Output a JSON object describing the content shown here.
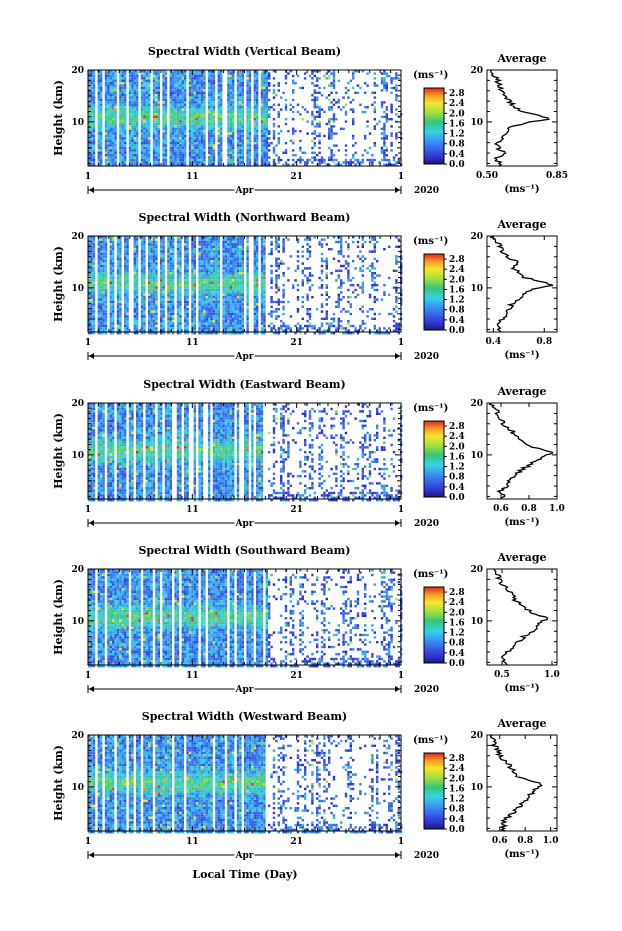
{
  "figure": {
    "xlabel": "Local Time (Day)",
    "month_label": "Apr",
    "year_label": "2020",
    "colorbar_unit": "(ms⁻¹)",
    "average_title": "Average",
    "average_unit": "(ms⁻¹)",
    "ylabel": "Height (km)"
  },
  "chart_data": [
    {
      "type": "heatmap",
      "title": "Spectral Width (Vertical Beam)",
      "ylabel": "Height (km)",
      "xlabel": "",
      "x_ticks": [
        "1",
        "11",
        "21",
        "1"
      ],
      "x_range": [
        1,
        31
      ],
      "y_ticks": [
        "20",
        "10"
      ],
      "y_range": [
        1.5,
        20
      ],
      "colorbar_ticks": [
        "2.8",
        "2.4",
        "2.0",
        "1.6",
        "1.2",
        "0.8",
        "0.4",
        "0.0"
      ],
      "colorbar_range": [
        0.0,
        3.0
      ],
      "data_coverage_until_day": 18.2,
      "average_profile": {
        "title": "Average",
        "xlabel": "(ms⁻¹)",
        "x_ticks": [
          "0.50",
          "0.85"
        ],
        "xlim": [
          0.5,
          0.85
        ],
        "y_ticks": [
          "20",
          "10"
        ],
        "height_km": [
          1.5,
          3,
          4,
          5,
          6,
          7,
          8,
          9,
          10,
          10.5,
          11,
          11.5,
          12,
          13,
          14,
          15,
          16,
          17,
          18,
          19,
          20
        ],
        "value": [
          0.56,
          0.55,
          0.58,
          0.56,
          0.55,
          0.57,
          0.6,
          0.62,
          0.7,
          0.82,
          0.79,
          0.72,
          0.68,
          0.64,
          0.61,
          0.6,
          0.58,
          0.56,
          0.55,
          0.53,
          0.52
        ]
      }
    },
    {
      "type": "heatmap",
      "title": "Spectral Width (Northward Beam)",
      "ylabel": "Height (km)",
      "xlabel": "",
      "x_ticks": [
        "1",
        "11",
        "21",
        "1"
      ],
      "x_range": [
        1,
        31
      ],
      "y_ticks": [
        "20",
        "10"
      ],
      "y_range": [
        1.5,
        20
      ],
      "colorbar_ticks": [
        "2.8",
        "2.4",
        "2.0",
        "1.6",
        "1.2",
        "0.8",
        "0.4",
        "0.0"
      ],
      "colorbar_range": [
        0.0,
        3.0
      ],
      "data_coverage_until_day": 18.2,
      "average_profile": {
        "title": "Average",
        "xlabel": "(ms⁻¹)",
        "x_ticks": [
          "0.4",
          "0.8"
        ],
        "xlim": [
          0.35,
          0.9
        ],
        "y_ticks": [
          "20",
          "10"
        ],
        "height_km": [
          1.5,
          3,
          4,
          5,
          6,
          7,
          8,
          9,
          10,
          10.5,
          11,
          11.5,
          12,
          13,
          14,
          15,
          16,
          17,
          18,
          19,
          20
        ],
        "value": [
          0.46,
          0.45,
          0.47,
          0.5,
          0.52,
          0.55,
          0.6,
          0.66,
          0.75,
          0.85,
          0.82,
          0.72,
          0.64,
          0.6,
          0.56,
          0.58,
          0.5,
          0.47,
          0.45,
          0.42,
          0.4
        ]
      }
    },
    {
      "type": "heatmap",
      "title": "Spectral Width (Eastward Beam)",
      "ylabel": "Height (km)",
      "xlabel": "",
      "x_ticks": [
        "1",
        "11",
        "21",
        "1"
      ],
      "x_range": [
        1,
        31
      ],
      "y_ticks": [
        "20",
        "10"
      ],
      "y_range": [
        1.5,
        20
      ],
      "colorbar_ticks": [
        "2.8",
        "2.4",
        "2.0",
        "1.6",
        "1.2",
        "0.8",
        "0.4",
        "0.0"
      ],
      "colorbar_range": [
        0.0,
        3.0
      ],
      "data_coverage_until_day": 18.2,
      "average_profile": {
        "title": "Average",
        "xlabel": "(ms⁻¹)",
        "x_ticks": [
          "0.6",
          "0.8",
          "1.0"
        ],
        "xlim": [
          0.5,
          1.0
        ],
        "y_ticks": [
          "20",
          "10"
        ],
        "height_km": [
          1.5,
          3,
          4,
          5,
          6,
          7,
          8,
          9,
          10,
          10.5,
          11,
          11.5,
          12,
          13,
          14,
          15,
          16,
          17,
          18,
          19,
          20
        ],
        "value": [
          0.62,
          0.6,
          0.64,
          0.66,
          0.7,
          0.74,
          0.8,
          0.86,
          0.92,
          0.97,
          0.9,
          0.82,
          0.78,
          0.72,
          0.7,
          0.66,
          0.62,
          0.6,
          0.58,
          0.55,
          0.53
        ]
      }
    },
    {
      "type": "heatmap",
      "title": "Spectral Width (Southward Beam)",
      "ylabel": "Height (km)",
      "xlabel": "",
      "x_ticks": [
        "1",
        "11",
        "21",
        "1"
      ],
      "x_range": [
        1,
        31
      ],
      "y_ticks": [
        "20",
        "10"
      ],
      "y_range": [
        1.5,
        20
      ],
      "colorbar_ticks": [
        "2.8",
        "2.4",
        "2.0",
        "1.6",
        "1.2",
        "0.8",
        "0.4",
        "0.0"
      ],
      "colorbar_range": [
        0.0,
        3.0
      ],
      "data_coverage_until_day": 18.2,
      "average_profile": {
        "title": "Average",
        "xlabel": "(ms⁻¹)",
        "x_ticks": [
          "0.5",
          "1.0"
        ],
        "xlim": [
          0.35,
          1.05
        ],
        "y_ticks": [
          "20",
          "10"
        ],
        "height_km": [
          1.5,
          3,
          4,
          5,
          6,
          7,
          8,
          9,
          10,
          10.5,
          11,
          11.5,
          12,
          13,
          14,
          15,
          16,
          17,
          18,
          19,
          20
        ],
        "value": [
          0.55,
          0.52,
          0.56,
          0.6,
          0.66,
          0.72,
          0.8,
          0.86,
          0.92,
          0.95,
          0.88,
          0.8,
          0.76,
          0.7,
          0.64,
          0.6,
          0.55,
          0.5,
          0.47,
          0.45,
          0.42
        ]
      }
    },
    {
      "type": "heatmap",
      "title": "Spectral Width (Westward Beam)",
      "ylabel": "Height (km)",
      "xlabel": "Local Time (Day)",
      "x_ticks": [
        "1",
        "11",
        "21",
        "1"
      ],
      "x_range": [
        1,
        31
      ],
      "y_ticks": [
        "20",
        "10"
      ],
      "y_range": [
        1.5,
        20
      ],
      "colorbar_ticks": [
        "2.8",
        "2.4",
        "2.0",
        "1.6",
        "1.2",
        "0.8",
        "0.4",
        "0.0"
      ],
      "colorbar_range": [
        0.0,
        3.0
      ],
      "data_coverage_until_day": 18.2,
      "average_profile": {
        "title": "Average",
        "xlabel": "(ms⁻¹)",
        "x_ticks": [
          "0.6",
          "0.8",
          "1.0"
        ],
        "xlim": [
          0.5,
          1.05
        ],
        "y_ticks": [
          "20",
          "10"
        ],
        "height_km": [
          1.5,
          3,
          4,
          5,
          6,
          7,
          8,
          9,
          10,
          10.5,
          11,
          11.5,
          12,
          13,
          14,
          15,
          16,
          17,
          18,
          19,
          20
        ],
        "value": [
          0.64,
          0.62,
          0.66,
          0.7,
          0.74,
          0.78,
          0.82,
          0.86,
          0.9,
          0.94,
          0.88,
          0.8,
          0.74,
          0.7,
          0.68,
          0.64,
          0.6,
          0.58,
          0.56,
          0.55,
          0.54
        ]
      }
    }
  ]
}
